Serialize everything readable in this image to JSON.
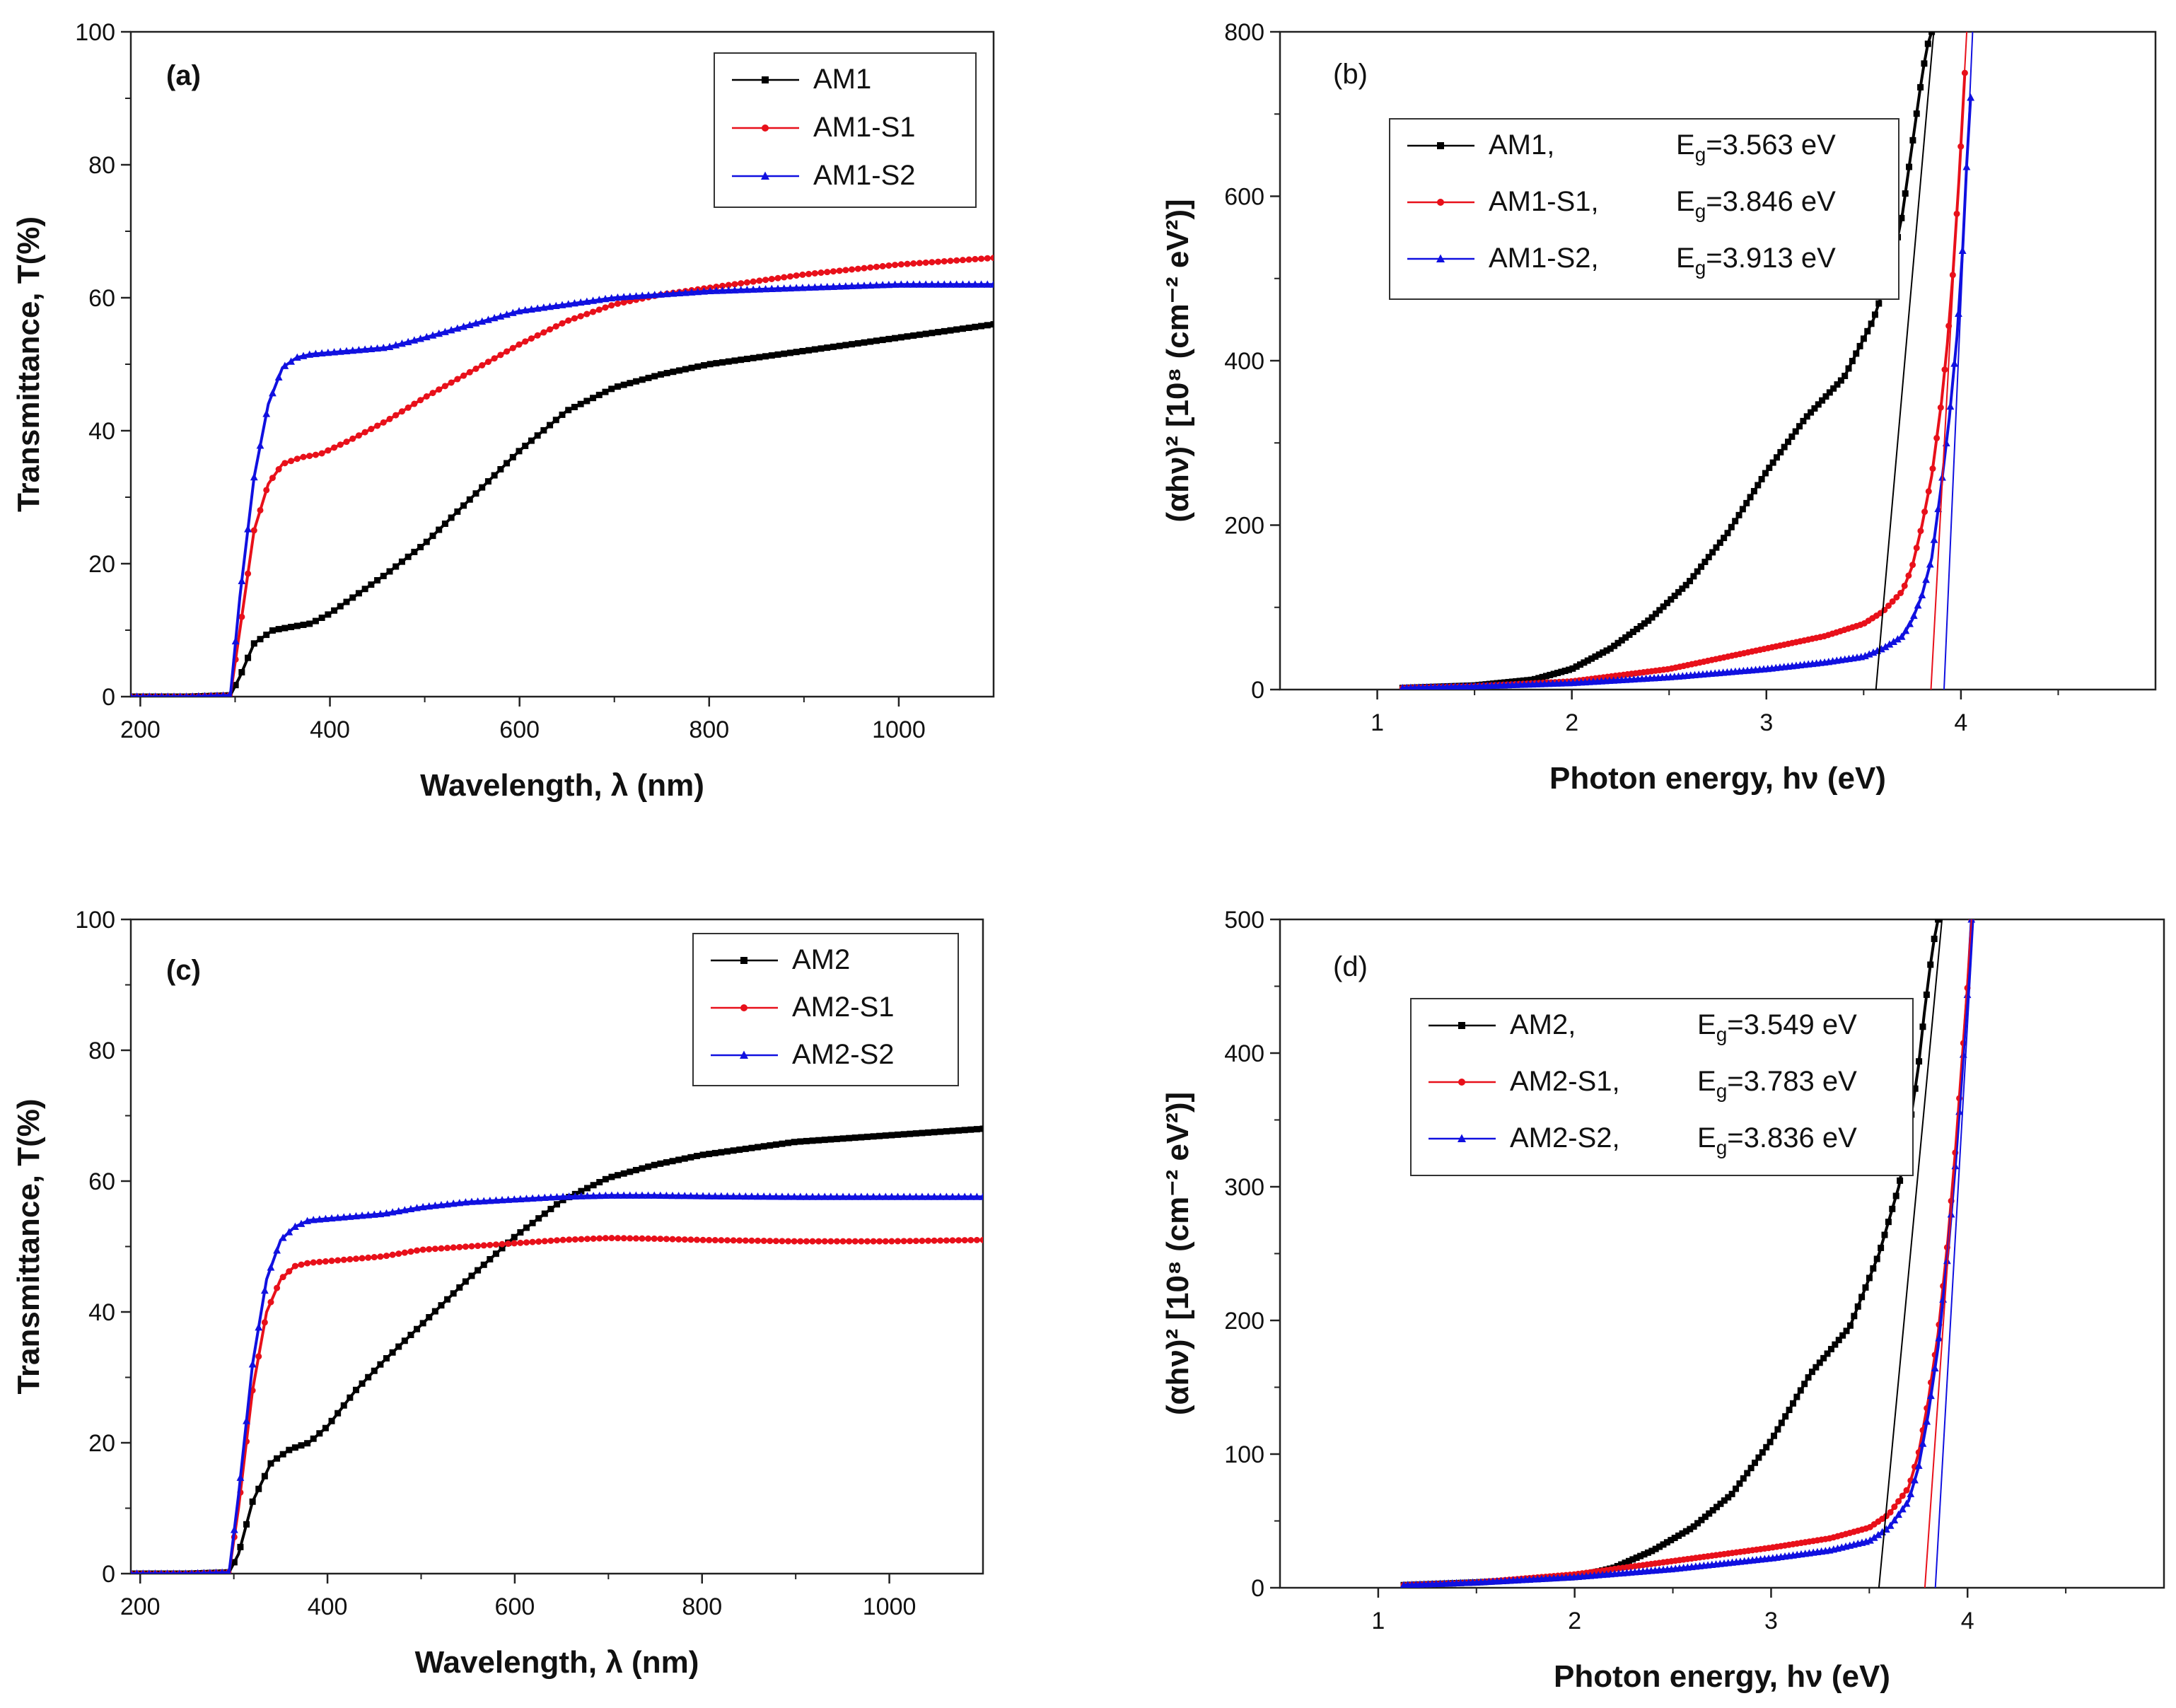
{
  "chart_data": [
    {
      "panel": "a",
      "type": "line",
      "label": "(a)",
      "xlabel": "Wavelength, λ (nm)",
      "ylabel": "Transmittance, T(%)",
      "xlim": [
        190,
        1100
      ],
      "ylim": [
        0,
        100
      ],
      "xticks": [
        200,
        400,
        600,
        800,
        1000
      ],
      "yticks": [
        0,
        20,
        40,
        60,
        80,
        100
      ],
      "legend_position": "top-right",
      "series": [
        {
          "name": "AM1",
          "color": "#000000",
          "marker": "square",
          "x": [
            190,
            250,
            295,
            305,
            320,
            340,
            360,
            380,
            400,
            430,
            460,
            500,
            550,
            600,
            650,
            700,
            750,
            800,
            900,
            1000,
            1100
          ],
          "y": [
            0,
            0,
            0.2,
            3,
            8,
            10,
            10.5,
            11,
            12.5,
            15.5,
            18.5,
            23,
            30,
            37,
            43,
            46.5,
            48.5,
            50,
            52,
            54,
            56
          ]
        },
        {
          "name": "AM1-S1",
          "color": "#e8101a",
          "marker": "circle",
          "x": [
            190,
            250,
            295,
            305,
            320,
            335,
            350,
            370,
            390,
            420,
            460,
            500,
            550,
            600,
            650,
            700,
            750,
            800,
            900,
            1000,
            1100
          ],
          "y": [
            0,
            0,
            0.2,
            10,
            25,
            32,
            35,
            36,
            36.5,
            38.5,
            41.5,
            45,
            49,
            53,
            56.5,
            59,
            60.5,
            61.5,
            63.5,
            65,
            66
          ]
        },
        {
          "name": "AM1-S2",
          "color": "#1010e0",
          "marker": "triangle",
          "x": [
            190,
            250,
            295,
            305,
            320,
            335,
            350,
            365,
            380,
            420,
            460,
            500,
            550,
            600,
            650,
            700,
            750,
            800,
            900,
            1000,
            1100
          ],
          "y": [
            0,
            0,
            0.2,
            15,
            33,
            44,
            49.5,
            51,
            51.5,
            52,
            52.5,
            54,
            56,
            58,
            59,
            60,
            60.5,
            61,
            61.5,
            62,
            62
          ]
        }
      ]
    },
    {
      "panel": "b",
      "type": "line",
      "label": "(b)",
      "xlabel": "Photon energy, hν (eV)",
      "ylabel": "(αhν)² [10⁸ (cm⁻² eV²)]",
      "xlim": [
        0.5,
        5.0
      ],
      "ylim": [
        0,
        800
      ],
      "xticks": [
        1,
        2,
        3,
        4
      ],
      "yticks": [
        0,
        200,
        400,
        600,
        800
      ],
      "legend_position": "top-left",
      "series": [
        {
          "name": "AM1,",
          "eg": "3.563 eV",
          "color": "#000000",
          "marker": "square",
          "x": [
            1.13,
            1.5,
            1.8,
            2.0,
            2.2,
            2.4,
            2.6,
            2.8,
            3.0,
            3.2,
            3.4,
            3.55,
            3.65,
            3.7,
            3.73,
            3.76,
            3.79,
            3.81,
            3.83,
            3.85
          ],
          "y": [
            2,
            5,
            12,
            25,
            50,
            85,
            130,
            190,
            265,
            330,
            380,
            450,
            520,
            580,
            630,
            680,
            730,
            760,
            785,
            800
          ]
        },
        {
          "name": "AM1-S1,",
          "eg": "3.846 eV",
          "color": "#e8101a",
          "marker": "circle",
          "x": [
            1.13,
            1.5,
            2.0,
            2.5,
            3.0,
            3.3,
            3.5,
            3.6,
            3.7,
            3.75,
            3.8,
            3.85,
            3.9,
            3.93,
            3.96,
            3.99,
            4.02
          ],
          "y": [
            2,
            4,
            10,
            25,
            50,
            65,
            80,
            95,
            120,
            150,
            200,
            260,
            350,
            420,
            510,
            620,
            750
          ]
        },
        {
          "name": "AM1-S2,",
          "eg": "3.913 eV",
          "color": "#1010e0",
          "marker": "triangle",
          "x": [
            1.13,
            1.5,
            2.0,
            2.5,
            3.0,
            3.3,
            3.5,
            3.6,
            3.7,
            3.75,
            3.8,
            3.85,
            3.9,
            3.94,
            3.98,
            4.01,
            4.03,
            4.05
          ],
          "y": [
            2,
            4,
            8,
            15,
            25,
            33,
            40,
            50,
            65,
            85,
            115,
            160,
            250,
            330,
            430,
            540,
            640,
            720
          ]
        },
        {
          "name": "fit AM1",
          "fit": true,
          "color": "#000000",
          "x": [
            3.563,
            3.86
          ],
          "y": [
            0,
            800
          ]
        },
        {
          "name": "fit AM1-S1",
          "fit": true,
          "color": "#e8101a",
          "x": [
            3.846,
            4.03
          ],
          "y": [
            0,
            800
          ]
        },
        {
          "name": "fit AM1-S2",
          "fit": true,
          "color": "#1010e0",
          "x": [
            3.913,
            4.06
          ],
          "y": [
            0,
            800
          ]
        }
      ]
    },
    {
      "panel": "c",
      "type": "line",
      "label": "(c)",
      "xlabel": "Wavelength, λ (nm)",
      "ylabel": "Transmittance, T(%)",
      "xlim": [
        190,
        1100
      ],
      "ylim": [
        0,
        100
      ],
      "xticks": [
        200,
        400,
        600,
        800,
        1000
      ],
      "yticks": [
        0,
        20,
        40,
        60,
        80,
        100
      ],
      "legend_position": "top-right",
      "series": [
        {
          "name": "AM2",
          "color": "#000000",
          "marker": "square",
          "x": [
            190,
            250,
            295,
            305,
            320,
            340,
            360,
            380,
            400,
            430,
            460,
            500,
            550,
            600,
            650,
            700,
            750,
            800,
            900,
            1000,
            1100
          ],
          "y": [
            0,
            0,
            0.2,
            3,
            11,
            17,
            19,
            20,
            22.5,
            28,
            32.5,
            38,
            45,
            51.5,
            57,
            60.5,
            62.5,
            64,
            66,
            67,
            68
          ]
        },
        {
          "name": "AM2-S1",
          "color": "#e8101a",
          "marker": "circle",
          "x": [
            190,
            250,
            295,
            305,
            320,
            335,
            350,
            365,
            380,
            420,
            460,
            500,
            550,
            600,
            650,
            700,
            750,
            800,
            900,
            1000,
            1100
          ],
          "y": [
            0,
            0,
            0.2,
            10,
            28,
            40,
            45,
            47,
            47.5,
            48,
            48.5,
            49.5,
            50,
            50.5,
            51,
            51.3,
            51.2,
            51,
            50.8,
            50.8,
            51
          ]
        },
        {
          "name": "AM2-S2",
          "color": "#1010e0",
          "marker": "triangle",
          "x": [
            190,
            250,
            295,
            305,
            320,
            335,
            350,
            365,
            380,
            420,
            460,
            500,
            550,
            600,
            650,
            700,
            750,
            800,
            900,
            1000,
            1100
          ],
          "y": [
            0,
            0,
            0.2,
            12,
            32,
            45,
            51,
            53,
            54,
            54.5,
            55,
            56,
            56.8,
            57.2,
            57.6,
            57.8,
            57.8,
            57.7,
            57.6,
            57.6,
            57.6
          ]
        }
      ]
    },
    {
      "panel": "d",
      "type": "line",
      "label": "(d)",
      "xlabel": "Photon energy, hν (eV)",
      "ylabel": "(αhν)² [10⁸ (cm⁻² eV²)]",
      "xlim": [
        0.5,
        5.0
      ],
      "ylim": [
        0,
        500
      ],
      "xticks": [
        1,
        2,
        3,
        4
      ],
      "yticks": [
        0,
        100,
        200,
        300,
        400,
        500
      ],
      "legend_position": "top-left",
      "series": [
        {
          "name": "AM2,",
          "eg": "3.549 eV",
          "color": "#000000",
          "marker": "square",
          "x": [
            1.13,
            1.5,
            2.0,
            2.2,
            2.4,
            2.6,
            2.8,
            3.0,
            3.2,
            3.4,
            3.55,
            3.65,
            3.7,
            3.75,
            3.78,
            3.81,
            3.83,
            3.85
          ],
          "y": [
            2,
            4,
            8,
            15,
            28,
            45,
            70,
            110,
            160,
            195,
            250,
            300,
            340,
            390,
            430,
            465,
            485,
            500
          ]
        },
        {
          "name": "AM2-S1,",
          "eg": "3.783 eV",
          "color": "#e8101a",
          "marker": "circle",
          "x": [
            1.13,
            1.5,
            2.0,
            2.5,
            3.0,
            3.3,
            3.5,
            3.6,
            3.7,
            3.75,
            3.8,
            3.85,
            3.9,
            3.94,
            3.97,
            4.0,
            4.02
          ],
          "y": [
            2,
            4,
            10,
            20,
            30,
            37,
            45,
            55,
            75,
            100,
            140,
            190,
            260,
            330,
            390,
            450,
            500
          ]
        },
        {
          "name": "AM2-S2,",
          "eg": "3.836 eV",
          "color": "#1010e0",
          "marker": "triangle",
          "x": [
            1.13,
            1.5,
            2.0,
            2.5,
            3.0,
            3.3,
            3.5,
            3.6,
            3.7,
            3.75,
            3.8,
            3.85,
            3.9,
            3.94,
            3.97,
            4.0,
            4.02
          ],
          "y": [
            2,
            4,
            8,
            14,
            22,
            28,
            35,
            45,
            65,
            90,
            130,
            180,
            250,
            320,
            380,
            445,
            500
          ]
        },
        {
          "name": "fit AM2",
          "fit": true,
          "color": "#000000",
          "x": [
            3.549,
            3.87
          ],
          "y": [
            0,
            500
          ]
        },
        {
          "name": "fit AM2-S1",
          "fit": true,
          "color": "#e8101a",
          "x": [
            3.783,
            4.02
          ],
          "y": [
            0,
            500
          ]
        },
        {
          "name": "fit AM2-S2",
          "fit": true,
          "color": "#1010e0",
          "x": [
            3.836,
            4.03
          ],
          "y": [
            0,
            500
          ]
        }
      ]
    }
  ]
}
